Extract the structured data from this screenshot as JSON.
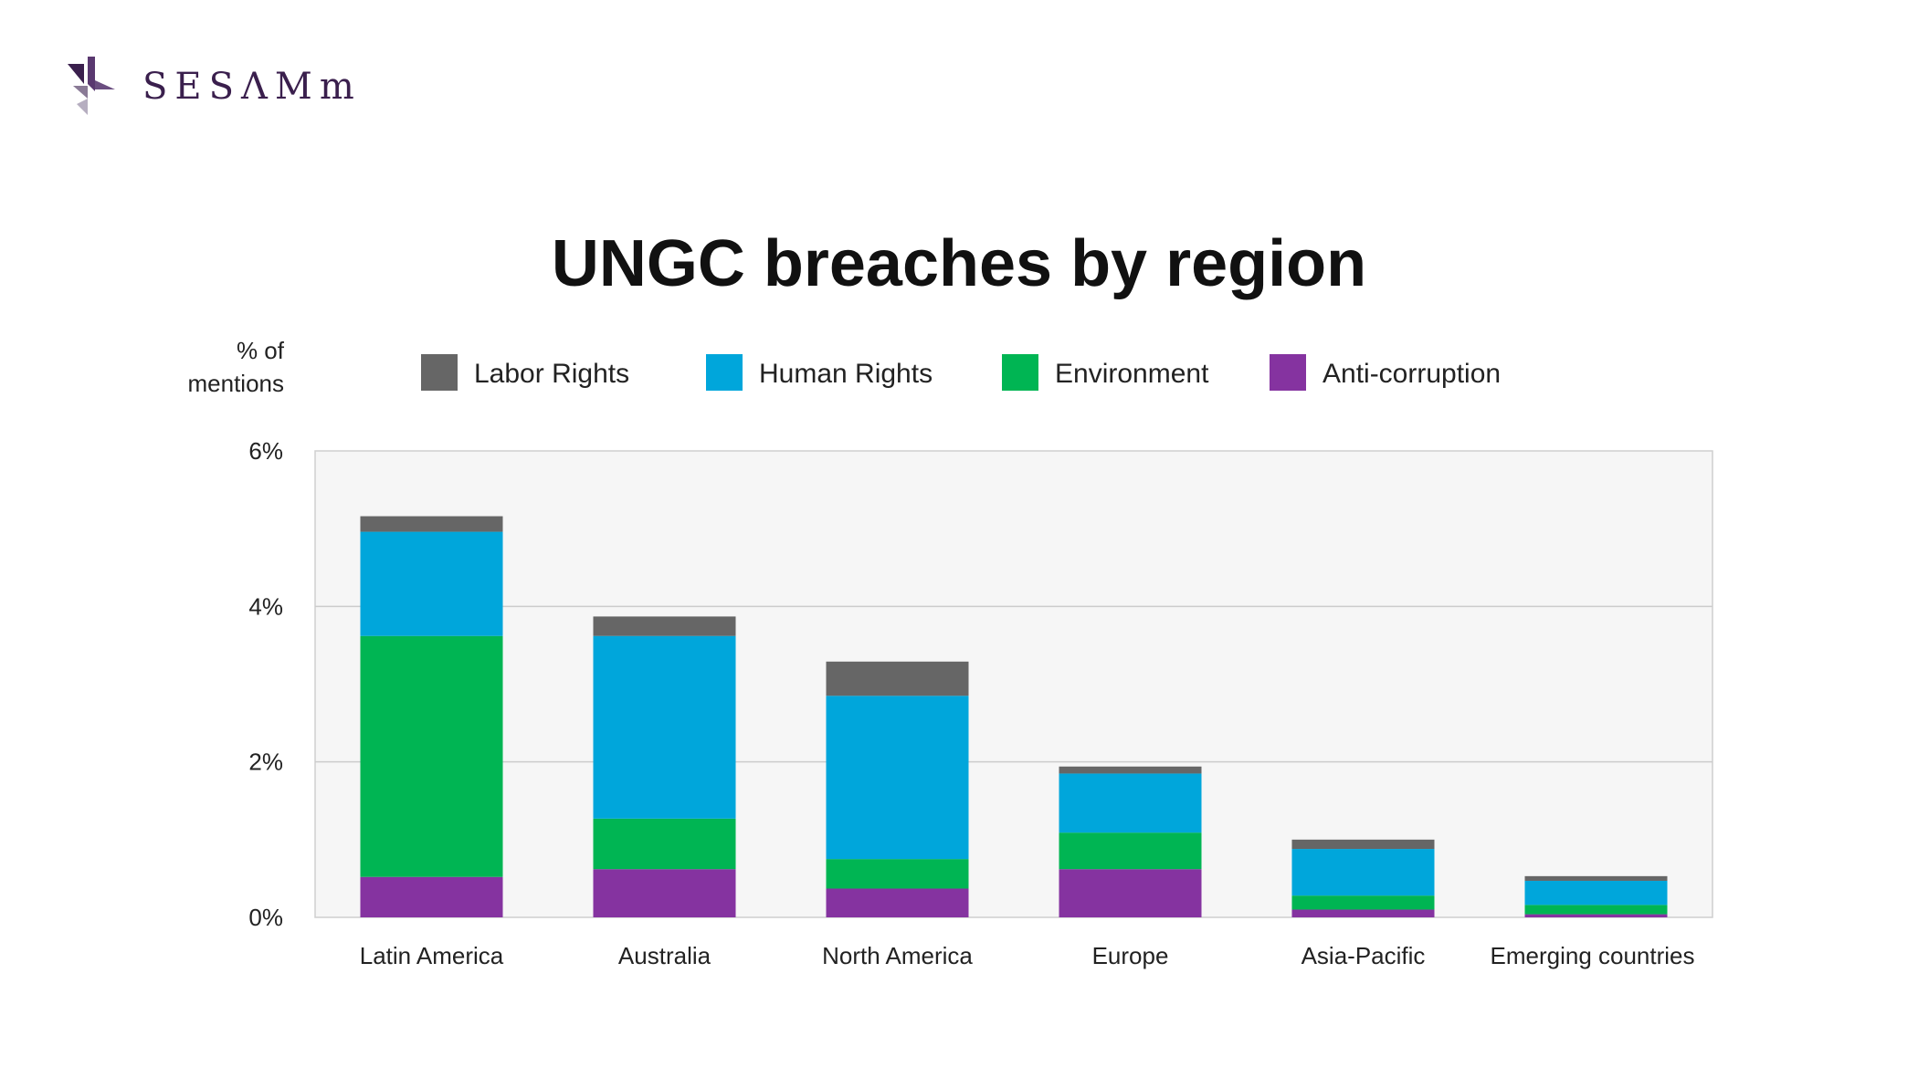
{
  "brand": {
    "name": "SESΛMm"
  },
  "chart_data": {
    "type": "bar",
    "stacked": true,
    "title": "UNGC breaches by region",
    "ylabel_lines": [
      "% of",
      "mentions"
    ],
    "ylim": [
      0,
      6
    ],
    "yticks": [
      0,
      2,
      4,
      6
    ],
    "ytick_labels": [
      "0%",
      "2%",
      "4%",
      "6%"
    ],
    "grid": true,
    "legend_position": "top",
    "categories": [
      "Latin America",
      "Australia",
      "North America",
      "Europe",
      "Asia-Pacific",
      "Emerging countries"
    ],
    "series": [
      {
        "name": "Anti-corruption",
        "color": "#8533a0",
        "values": [
          0.52,
          0.62,
          0.37,
          0.62,
          0.1,
          0.04
        ]
      },
      {
        "name": "Environment",
        "color": "#00b553",
        "values": [
          3.1,
          0.65,
          0.38,
          0.47,
          0.18,
          0.12
        ]
      },
      {
        "name": "Human Rights",
        "color": "#00a6db",
        "values": [
          1.34,
          2.35,
          2.1,
          0.76,
          0.6,
          0.31
        ]
      },
      {
        "name": "Labor Rights",
        "color": "#666666",
        "values": [
          0.2,
          0.25,
          0.44,
          0.09,
          0.12,
          0.06
        ]
      }
    ],
    "legend_order": [
      "Labor Rights",
      "Human Rights",
      "Environment",
      "Anti-corruption"
    ]
  }
}
